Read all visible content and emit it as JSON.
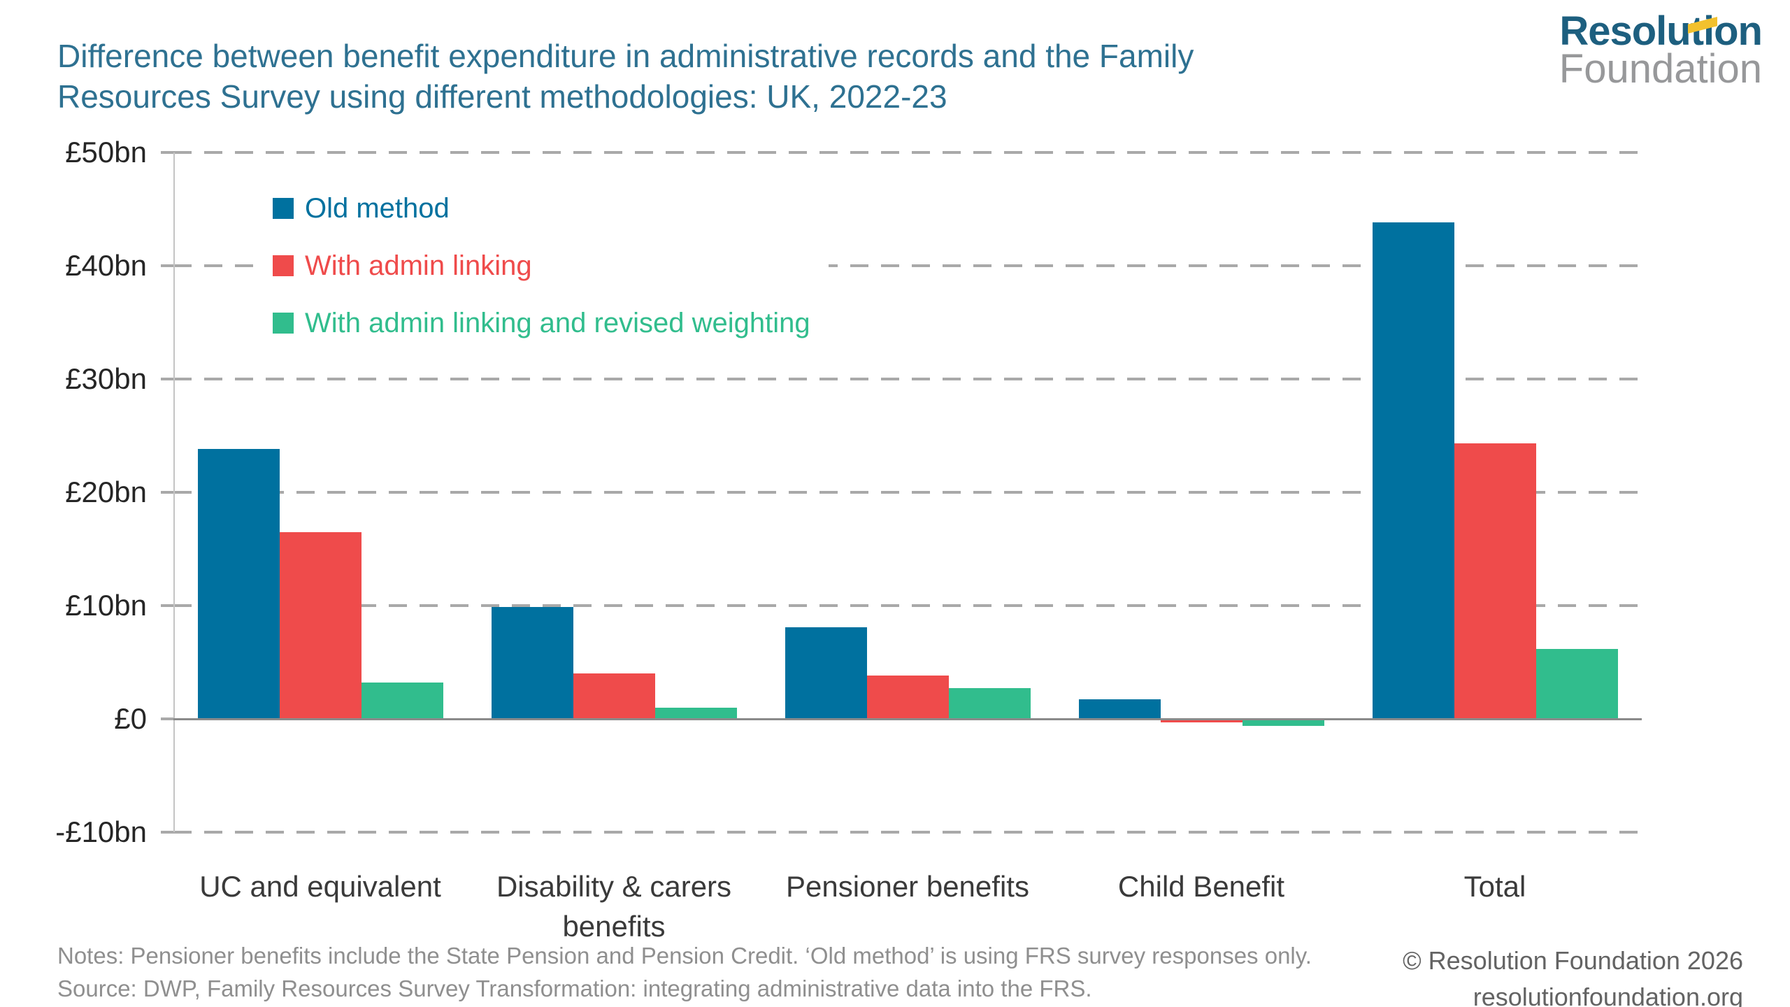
{
  "title": {
    "line1": "Difference between benefit expenditure in administrative records and the Family",
    "line2": "Resources Survey using different methodologies: UK, 2022-23"
  },
  "logo": {
    "line1": "Resolution",
    "line2": "Foundation",
    "flag_color": "#F2C12E"
  },
  "chart_data": {
    "type": "bar",
    "title": "Difference between benefit expenditure in administrative records and the Family Resources Survey using different methodologies: UK, 2022-23",
    "categories": [
      "UC and equivalent",
      "Disability & carers benefits",
      "Pensioner benefits",
      "Child Benefit",
      "Total"
    ],
    "series": [
      {
        "name": "Old method",
        "color": "#00719F",
        "values": [
          23.8,
          9.9,
          8.1,
          1.7,
          43.8
        ]
      },
      {
        "name": "With admin linking",
        "color": "#EF4B4B",
        "values": [
          16.5,
          4.0,
          3.8,
          -0.3,
          24.3
        ]
      },
      {
        "name": "With admin linking and revised weighting",
        "color": "#31BD8D",
        "values": [
          3.2,
          1.0,
          2.7,
          -0.6,
          6.2
        ]
      }
    ],
    "yticks": [
      {
        "label": "£50bn",
        "value": 50
      },
      {
        "label": "£40bn",
        "value": 40
      },
      {
        "label": "£30bn",
        "value": 30
      },
      {
        "label": "£20bn",
        "value": 20
      },
      {
        "label": "£10bn",
        "value": 10
      },
      {
        "label": "£0",
        "value": 0
      },
      {
        "label": "-£10bn",
        "value": -10
      }
    ],
    "ylim": [
      -10,
      50
    ],
    "xlabel": "",
    "ylabel": "",
    "grid": "horizontal-dashed",
    "legend_position": "top-left-inside"
  },
  "notes": {
    "line1": "Notes: Pensioner benefits include the State Pension and Pension Credit. ‘Old method’ is using FRS survey responses only.",
    "line2": "Source: DWP, Family Resources Survey Transformation: integrating administrative data into the FRS."
  },
  "footer": {
    "copyright": "© Resolution Foundation 2026",
    "website": "resolutionfoundation.org"
  }
}
